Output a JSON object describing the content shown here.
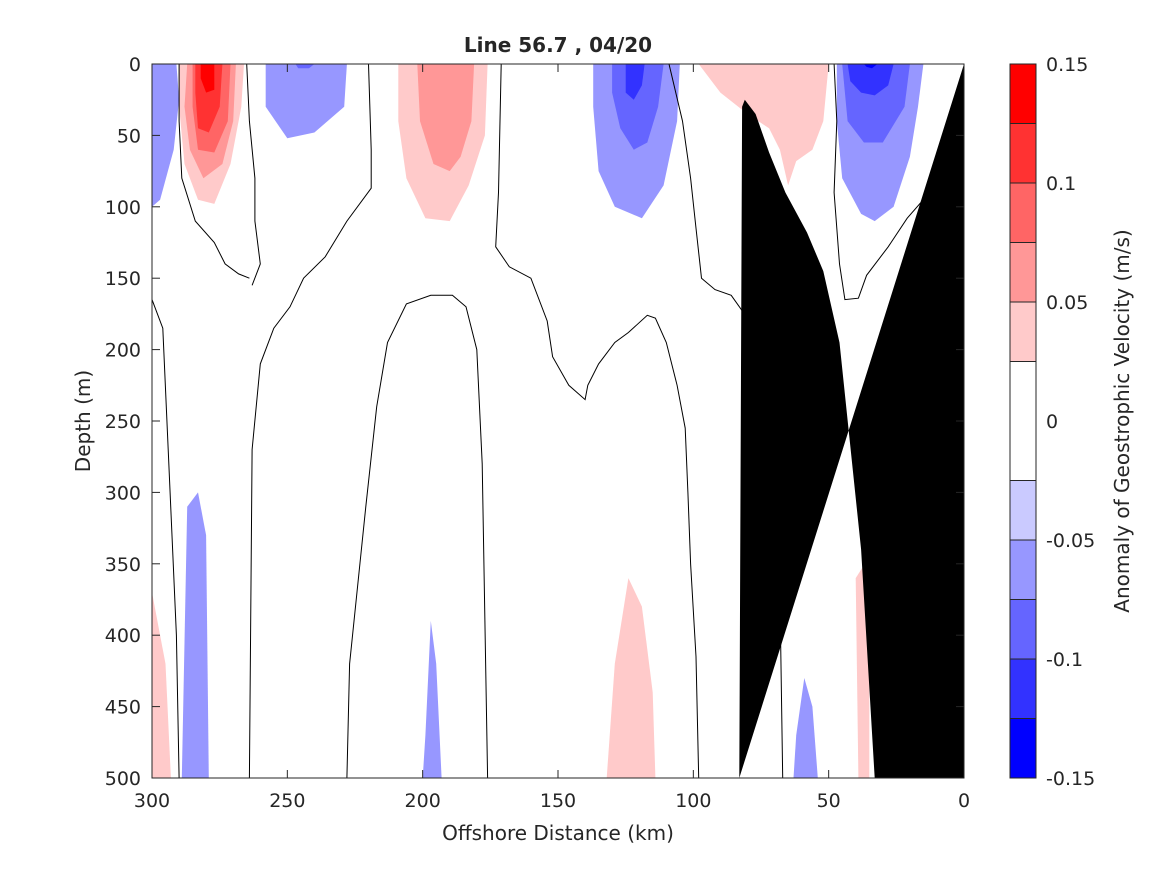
{
  "chart_data": {
    "type": "heatmap",
    "subtype": "filled-contour",
    "title": "Line 56.7 , 04/20",
    "xlabel": "Offshore Distance (km)",
    "ylabel": "Depth (m)",
    "colorbar_label": "Anomaly of Geostrophic Velocity (m/s)",
    "xlim": [
      300,
      0
    ],
    "ylim": [
      0,
      500
    ],
    "x_reversed": true,
    "y_reversed": true,
    "x_ticks": [
      300,
      250,
      200,
      150,
      100,
      50,
      0
    ],
    "y_ticks": [
      0,
      50,
      100,
      150,
      200,
      250,
      300,
      350,
      400,
      450,
      500
    ],
    "colorbar": {
      "clim": [
        -0.15,
        0.15
      ],
      "ticks": [
        0.15,
        0.1,
        0.05,
        0,
        -0.05,
        -0.1,
        -0.15
      ],
      "tick_labels": [
        "0.15",
        "0.1",
        "0.05",
        "0",
        "-0.05",
        "-0.1",
        "-0.15"
      ],
      "levels": [
        -0.15,
        -0.125,
        -0.1,
        -0.075,
        -0.05,
        -0.025,
        0.025,
        0.05,
        0.075,
        0.1,
        0.125,
        0.15
      ],
      "colors": [
        "#0000ff",
        "#3232ff",
        "#6565ff",
        "#9797ff",
        "#cacaff",
        "#ffffff",
        "#ffcaca",
        "#ff9797",
        "#ff6565",
        "#ff3232",
        "#ff0000"
      ]
    },
    "bathymetry_color": "#000000",
    "bathymetry": [
      [
        33,
        500
      ],
      [
        38,
        340
      ],
      [
        46,
        195
      ],
      [
        52,
        145
      ],
      [
        58,
        118
      ],
      [
        66,
        90
      ],
      [
        72,
        62
      ],
      [
        77,
        35
      ],
      [
        81,
        25
      ],
      [
        82,
        30
      ],
      [
        83,
        500
      ]
    ],
    "patches": [
      {
        "level": -0.075,
        "points": [
          [
            298,
            0
          ],
          [
            291,
            0
          ],
          [
            292,
            20
          ],
          [
            296,
            35
          ],
          [
            299,
            28
          ]
        ]
      },
      {
        "level": -0.05,
        "points": [
          [
            300,
            0
          ],
          [
            291,
            0
          ],
          [
            290,
            25
          ],
          [
            292,
            60
          ],
          [
            297,
            95
          ],
          [
            300,
            100
          ]
        ]
      },
      {
        "level": 0.05,
        "points": [
          [
            290,
            0
          ],
          [
            266,
            0
          ],
          [
            267,
            30
          ],
          [
            271,
            70
          ],
          [
            277,
            98
          ],
          [
            283,
            95
          ],
          [
            288,
            70
          ],
          [
            290,
            30
          ]
        ]
      },
      {
        "level": 0.075,
        "points": [
          [
            287,
            0
          ],
          [
            269,
            0
          ],
          [
            270,
            40
          ],
          [
            274,
            70
          ],
          [
            281,
            80
          ],
          [
            286,
            60
          ],
          [
            288,
            30
          ]
        ]
      },
      {
        "level": 0.1,
        "points": [
          [
            285,
            0
          ],
          [
            271,
            0
          ],
          [
            272,
            40
          ],
          [
            277,
            62
          ],
          [
            283,
            60
          ],
          [
            285,
            30
          ]
        ]
      },
      {
        "level": 0.125,
        "points": [
          [
            284,
            0
          ],
          [
            274,
            0
          ],
          [
            275,
            30
          ],
          [
            279,
            48
          ],
          [
            283,
            45
          ],
          [
            284,
            20
          ]
        ]
      },
      {
        "level": 0.15,
        "points": [
          [
            282,
            0
          ],
          [
            277,
            0
          ],
          [
            277,
            18
          ],
          [
            280,
            20
          ],
          [
            282,
            10
          ]
        ]
      },
      {
        "level": -0.05,
        "points": [
          [
            258,
            0
          ],
          [
            228,
            0
          ],
          [
            229,
            30
          ],
          [
            240,
            48
          ],
          [
            250,
            52
          ],
          [
            258,
            30
          ]
        ]
      },
      {
        "level": -0.075,
        "points": [
          [
            247,
            0
          ],
          [
            240,
            0
          ],
          [
            242,
            3
          ],
          [
            246,
            3
          ]
        ]
      },
      {
        "level": 0.05,
        "points": [
          [
            209,
            0
          ],
          [
            176,
            0
          ],
          [
            177,
            50
          ],
          [
            183,
            85
          ],
          [
            190,
            110
          ],
          [
            199,
            108
          ],
          [
            206,
            80
          ],
          [
            209,
            40
          ]
        ]
      },
      {
        "level": 0.075,
        "points": [
          [
            202,
            0
          ],
          [
            181,
            0
          ],
          [
            182,
            40
          ],
          [
            186,
            65
          ],
          [
            190,
            75
          ],
          [
            196,
            70
          ],
          [
            201,
            40
          ]
        ]
      },
      {
        "level": -0.05,
        "points": [
          [
            137,
            0
          ],
          [
            105,
            0
          ],
          [
            106,
            40
          ],
          [
            111,
            85
          ],
          [
            119,
            108
          ],
          [
            129,
            100
          ],
          [
            135,
            75
          ],
          [
            137,
            30
          ]
        ]
      },
      {
        "level": -0.075,
        "points": [
          [
            130,
            0
          ],
          [
            111,
            0
          ],
          [
            113,
            30
          ],
          [
            117,
            55
          ],
          [
            122,
            60
          ],
          [
            127,
            45
          ],
          [
            130,
            20
          ]
        ]
      },
      {
        "level": -0.1,
        "points": [
          [
            125,
            0
          ],
          [
            118,
            0
          ],
          [
            119,
            15
          ],
          [
            122,
            25
          ],
          [
            125,
            20
          ]
        ]
      },
      {
        "level": 0.05,
        "points": [
          [
            98,
            0
          ],
          [
            50,
            0
          ],
          [
            52,
            40
          ],
          [
            56,
            60
          ],
          [
            62,
            68
          ],
          [
            65,
            85
          ],
          [
            68,
            60
          ],
          [
            72,
            45
          ],
          [
            80,
            35
          ],
          [
            90,
            20
          ]
        ]
      },
      {
        "level": -0.05,
        "points": [
          [
            47,
            0
          ],
          [
            15,
            0
          ],
          [
            17,
            30
          ],
          [
            20,
            65
          ],
          [
            26,
            100
          ],
          [
            33,
            110
          ],
          [
            38,
            105
          ],
          [
            45,
            80
          ],
          [
            47,
            40
          ]
        ]
      },
      {
        "level": -0.075,
        "points": [
          [
            45,
            0
          ],
          [
            20,
            0
          ],
          [
            22,
            30
          ],
          [
            30,
            55
          ],
          [
            37,
            55
          ],
          [
            43,
            40
          ]
        ]
      },
      {
        "level": -0.1,
        "points": [
          [
            43,
            0
          ],
          [
            26,
            0
          ],
          [
            28,
            15
          ],
          [
            33,
            22
          ],
          [
            38,
            20
          ],
          [
            42,
            12
          ]
        ]
      },
      {
        "level": -0.125,
        "points": [
          [
            37,
            0
          ],
          [
            32,
            0
          ],
          [
            34,
            3
          ],
          [
            36,
            2
          ]
        ]
      },
      {
        "level": -0.05,
        "points": [
          [
            289,
            500
          ],
          [
            287,
            310
          ],
          [
            283,
            300
          ],
          [
            280,
            330
          ],
          [
            279,
            500
          ]
        ]
      },
      {
        "level": 0.05,
        "points": [
          [
            300,
            370
          ],
          [
            295,
            420
          ],
          [
            293,
            500
          ],
          [
            300,
            500
          ]
        ]
      },
      {
        "level": -0.05,
        "points": [
          [
            200,
            500
          ],
          [
            199,
            470
          ],
          [
            197,
            390
          ],
          [
            195,
            420
          ],
          [
            193,
            500
          ]
        ]
      },
      {
        "level": 0.05,
        "points": [
          [
            132,
            500
          ],
          [
            129,
            420
          ],
          [
            124,
            360
          ],
          [
            119,
            380
          ],
          [
            115,
            440
          ],
          [
            114,
            500
          ]
        ]
      },
      {
        "level": -0.05,
        "points": [
          [
            63,
            500
          ],
          [
            62,
            470
          ],
          [
            59,
            430
          ],
          [
            56,
            450
          ],
          [
            54,
            500
          ]
        ]
      },
      {
        "level": 0.05,
        "points": [
          [
            39,
            500
          ],
          [
            40,
            360
          ],
          [
            35,
            345
          ],
          [
            35,
            500
          ]
        ]
      }
    ],
    "contour_lines": [
      [
        [
          290,
          0
        ],
        [
          290,
          40
        ],
        [
          289,
          80
        ],
        [
          284,
          110
        ],
        [
          277,
          125
        ],
        [
          273,
          140
        ],
        [
          268,
          147
        ],
        [
          264,
          150
        ]
      ],
      [
        [
          265,
          0
        ],
        [
          264,
          40
        ],
        [
          262,
          80
        ],
        [
          262,
          110
        ],
        [
          260,
          140
        ],
        [
          263,
          155
        ]
      ],
      [
        [
          300,
          165
        ],
        [
          296,
          185
        ],
        [
          294,
          270
        ],
        [
          291,
          400
        ],
        [
          290,
          500
        ]
      ],
      [
        [
          264,
          500
        ],
        [
          263,
          270
        ],
        [
          260,
          210
        ],
        [
          255,
          185
        ],
        [
          249,
          170
        ],
        [
          244,
          150
        ],
        [
          236,
          135
        ],
        [
          228,
          110
        ],
        [
          219,
          87
        ],
        [
          219,
          60
        ],
        [
          220,
          0
        ]
      ],
      [
        [
          228,
          500
        ],
        [
          227,
          420
        ],
        [
          221,
          310
        ],
        [
          217,
          240
        ],
        [
          213,
          195
        ],
        [
          206,
          168
        ],
        [
          197,
          162
        ],
        [
          189,
          162
        ],
        [
          184,
          170
        ],
        [
          180,
          200
        ],
        [
          178,
          280
        ],
        [
          177,
          390
        ],
        [
          176,
          500
        ]
      ],
      [
        [
          171,
          0
        ],
        [
          172,
          90
        ],
        [
          173,
          128
        ],
        [
          168,
          142
        ],
        [
          160,
          150
        ],
        [
          154,
          180
        ],
        [
          152,
          205
        ],
        [
          146,
          225
        ],
        [
          140,
          235
        ],
        [
          139,
          225
        ],
        [
          135,
          210
        ],
        [
          129,
          195
        ],
        [
          124,
          188
        ],
        [
          117,
          176
        ],
        [
          114,
          178
        ],
        [
          110,
          195
        ],
        [
          106,
          225
        ],
        [
          103,
          255
        ],
        [
          102,
          300
        ],
        [
          101,
          350
        ],
        [
          99,
          415
        ],
        [
          98,
          500
        ]
      ],
      [
        [
          109,
          0
        ],
        [
          104,
          40
        ],
        [
          101,
          80
        ],
        [
          99,
          115
        ],
        [
          97,
          150
        ],
        [
          92,
          158
        ],
        [
          86,
          162
        ],
        [
          80,
          178
        ],
        [
          77,
          200
        ],
        [
          71,
          235
        ],
        [
          69,
          300
        ],
        [
          68,
          370
        ],
        [
          67,
          500
        ]
      ],
      [
        [
          48,
          0
        ],
        [
          47,
          40
        ],
        [
          48,
          90
        ],
        [
          46,
          140
        ],
        [
          44,
          165
        ],
        [
          39,
          164
        ],
        [
          36,
          148
        ],
        [
          28,
          128
        ],
        [
          21,
          108
        ],
        [
          15,
          95
        ],
        [
          11,
          100
        ]
      ]
    ]
  }
}
